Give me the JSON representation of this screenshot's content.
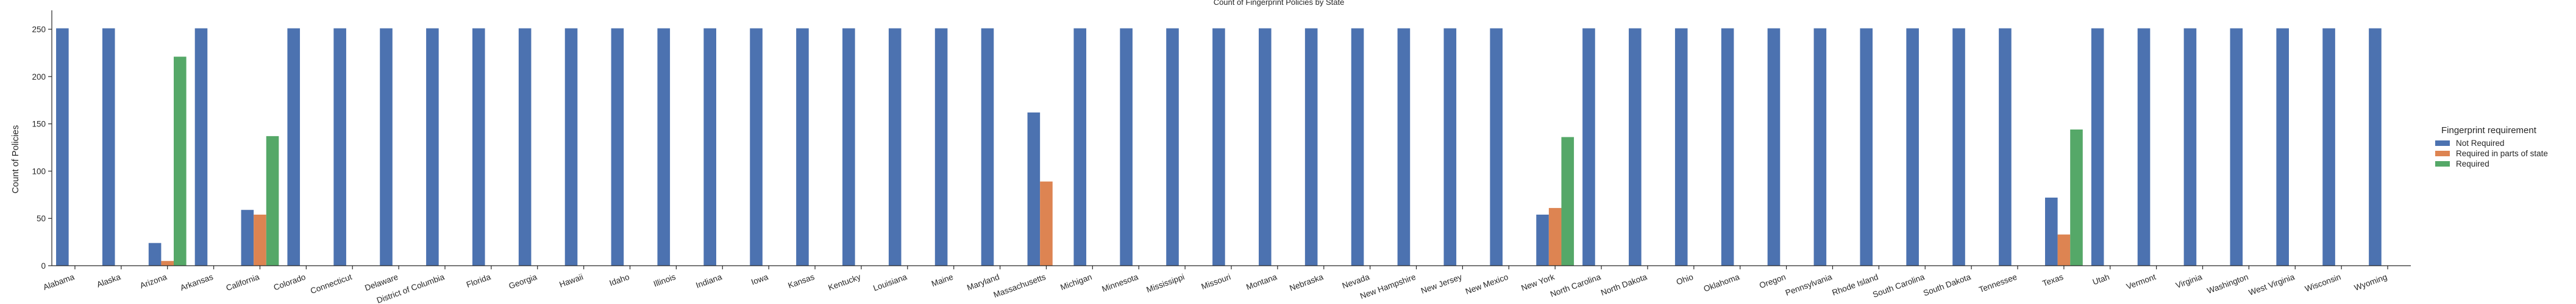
{
  "chart_data": {
    "type": "bar",
    "title": "Count of Fingerprint Policies by State",
    "xlabel": "",
    "ylabel": "Count of Policies",
    "ylim": [
      0,
      270
    ],
    "yticks": [
      0,
      50,
      100,
      150,
      200,
      250
    ],
    "grid": false,
    "legend_title": "Fingerprint requirement",
    "legend_position": "right",
    "categories": [
      "Alabama",
      "Alaska",
      "Arizona",
      "Arkansas",
      "California",
      "Colorado",
      "Connecticut",
      "Delaware",
      "District of Columbia",
      "Florida",
      "Georgia",
      "Hawaii",
      "Idaho",
      "Illinois",
      "Indiana",
      "Iowa",
      "Kansas",
      "Kentucky",
      "Louisiana",
      "Maine",
      "Maryland",
      "Massachusetts",
      "Michigan",
      "Minnesota",
      "Mississippi",
      "Missouri",
      "Montana",
      "Nebraska",
      "Nevada",
      "New Hampshire",
      "New Jersey",
      "New Mexico",
      "New York",
      "North Carolina",
      "North Dakota",
      "Ohio",
      "Oklahoma",
      "Oregon",
      "Pennsylvania",
      "Rhode Island",
      "South Carolina",
      "South Dakota",
      "Tennessee",
      "Texas",
      "Utah",
      "Vermont",
      "Virginia",
      "Washington",
      "West Virginia",
      "Wisconsin",
      "Wyoming"
    ],
    "series": [
      {
        "name": "Not Required",
        "color": "#4c72b0",
        "values": [
          251,
          251,
          24,
          251,
          59,
          251,
          251,
          251,
          251,
          251,
          251,
          251,
          251,
          251,
          251,
          251,
          251,
          251,
          251,
          251,
          251,
          162,
          251,
          251,
          251,
          251,
          251,
          251,
          251,
          251,
          251,
          251,
          54,
          251,
          251,
          251,
          251,
          251,
          251,
          251,
          251,
          251,
          251,
          72,
          251,
          251,
          251,
          251,
          251,
          251,
          251
        ]
      },
      {
        "name": "Required in parts of state",
        "color": "#dd8452",
        "values": [
          0,
          0,
          5,
          0,
          54,
          0,
          0,
          0,
          0,
          0,
          0,
          0,
          0,
          0,
          0,
          0,
          0,
          0,
          0,
          0,
          0,
          89,
          0,
          0,
          0,
          0,
          0,
          0,
          0,
          0,
          0,
          0,
          61,
          0,
          0,
          0,
          0,
          0,
          0,
          0,
          0,
          0,
          0,
          33,
          0,
          0,
          0,
          0,
          0,
          0,
          0
        ]
      },
      {
        "name": "Required",
        "color": "#55a868",
        "values": [
          0,
          0,
          221,
          0,
          137,
          0,
          0,
          0,
          0,
          0,
          0,
          0,
          0,
          0,
          0,
          0,
          0,
          0,
          0,
          0,
          0,
          0,
          0,
          0,
          0,
          0,
          0,
          0,
          0,
          0,
          0,
          0,
          136,
          0,
          0,
          0,
          0,
          0,
          0,
          0,
          0,
          0,
          0,
          144,
          0,
          0,
          0,
          0,
          0,
          0,
          0
        ]
      }
    ]
  }
}
